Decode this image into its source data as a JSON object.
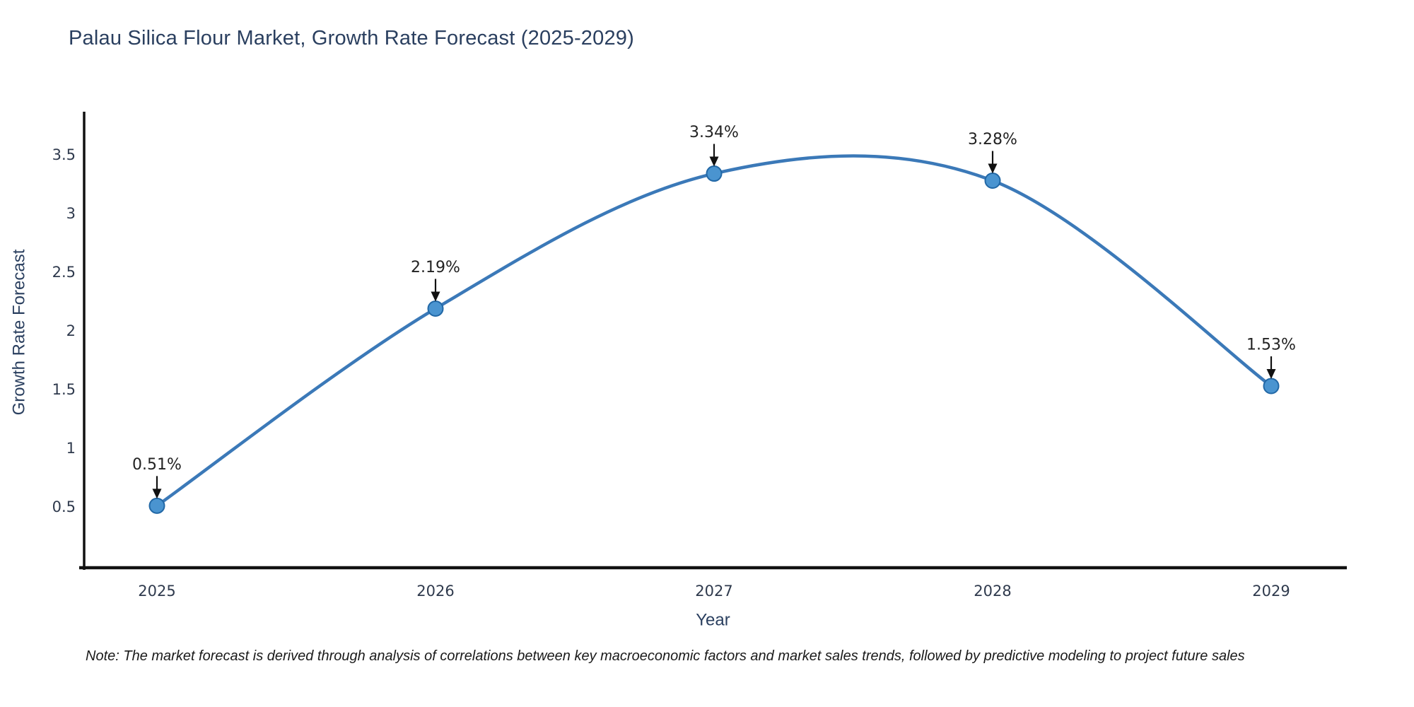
{
  "title": "Palau Silica Flour Market, Growth Rate Forecast (2025-2029)",
  "note": "Note: The market forecast is derived through analysis of correlations between key macroeconomic factors and market sales trends, followed by predictive modeling to project future sales",
  "chart_data": {
    "type": "line",
    "line_shape": "spline",
    "title": "Palau Silica Flour Market, Growth Rate Forecast (2025-2029)",
    "xlabel": "Year",
    "ylabel": "Growth Rate Forecast",
    "x": [
      2025,
      2026,
      2027,
      2028,
      2029
    ],
    "series": [
      {
        "name": "Growth Rate Forecast",
        "values": [
          0.51,
          2.19,
          3.34,
          3.28,
          1.53
        ]
      }
    ],
    "point_labels": [
      "0.51%",
      "2.19%",
      "3.34%",
      "3.28%",
      "1.53%"
    ],
    "yticks": [
      0.5,
      1,
      1.5,
      2,
      2.5,
      3,
      3.5
    ],
    "ylim": [
      0,
      3.9
    ],
    "grid": false,
    "legend": "none",
    "colors": {
      "line": "#3b79b8",
      "marker_fill": "#4a94d0",
      "marker_edge": "#2268a6",
      "annotation_text": "#222222",
      "arrow": "#111111",
      "axis_line": "#111111",
      "title_text": "#2a3f5f",
      "tick_text": "#2f3a4d",
      "background": "#ffffff"
    }
  }
}
